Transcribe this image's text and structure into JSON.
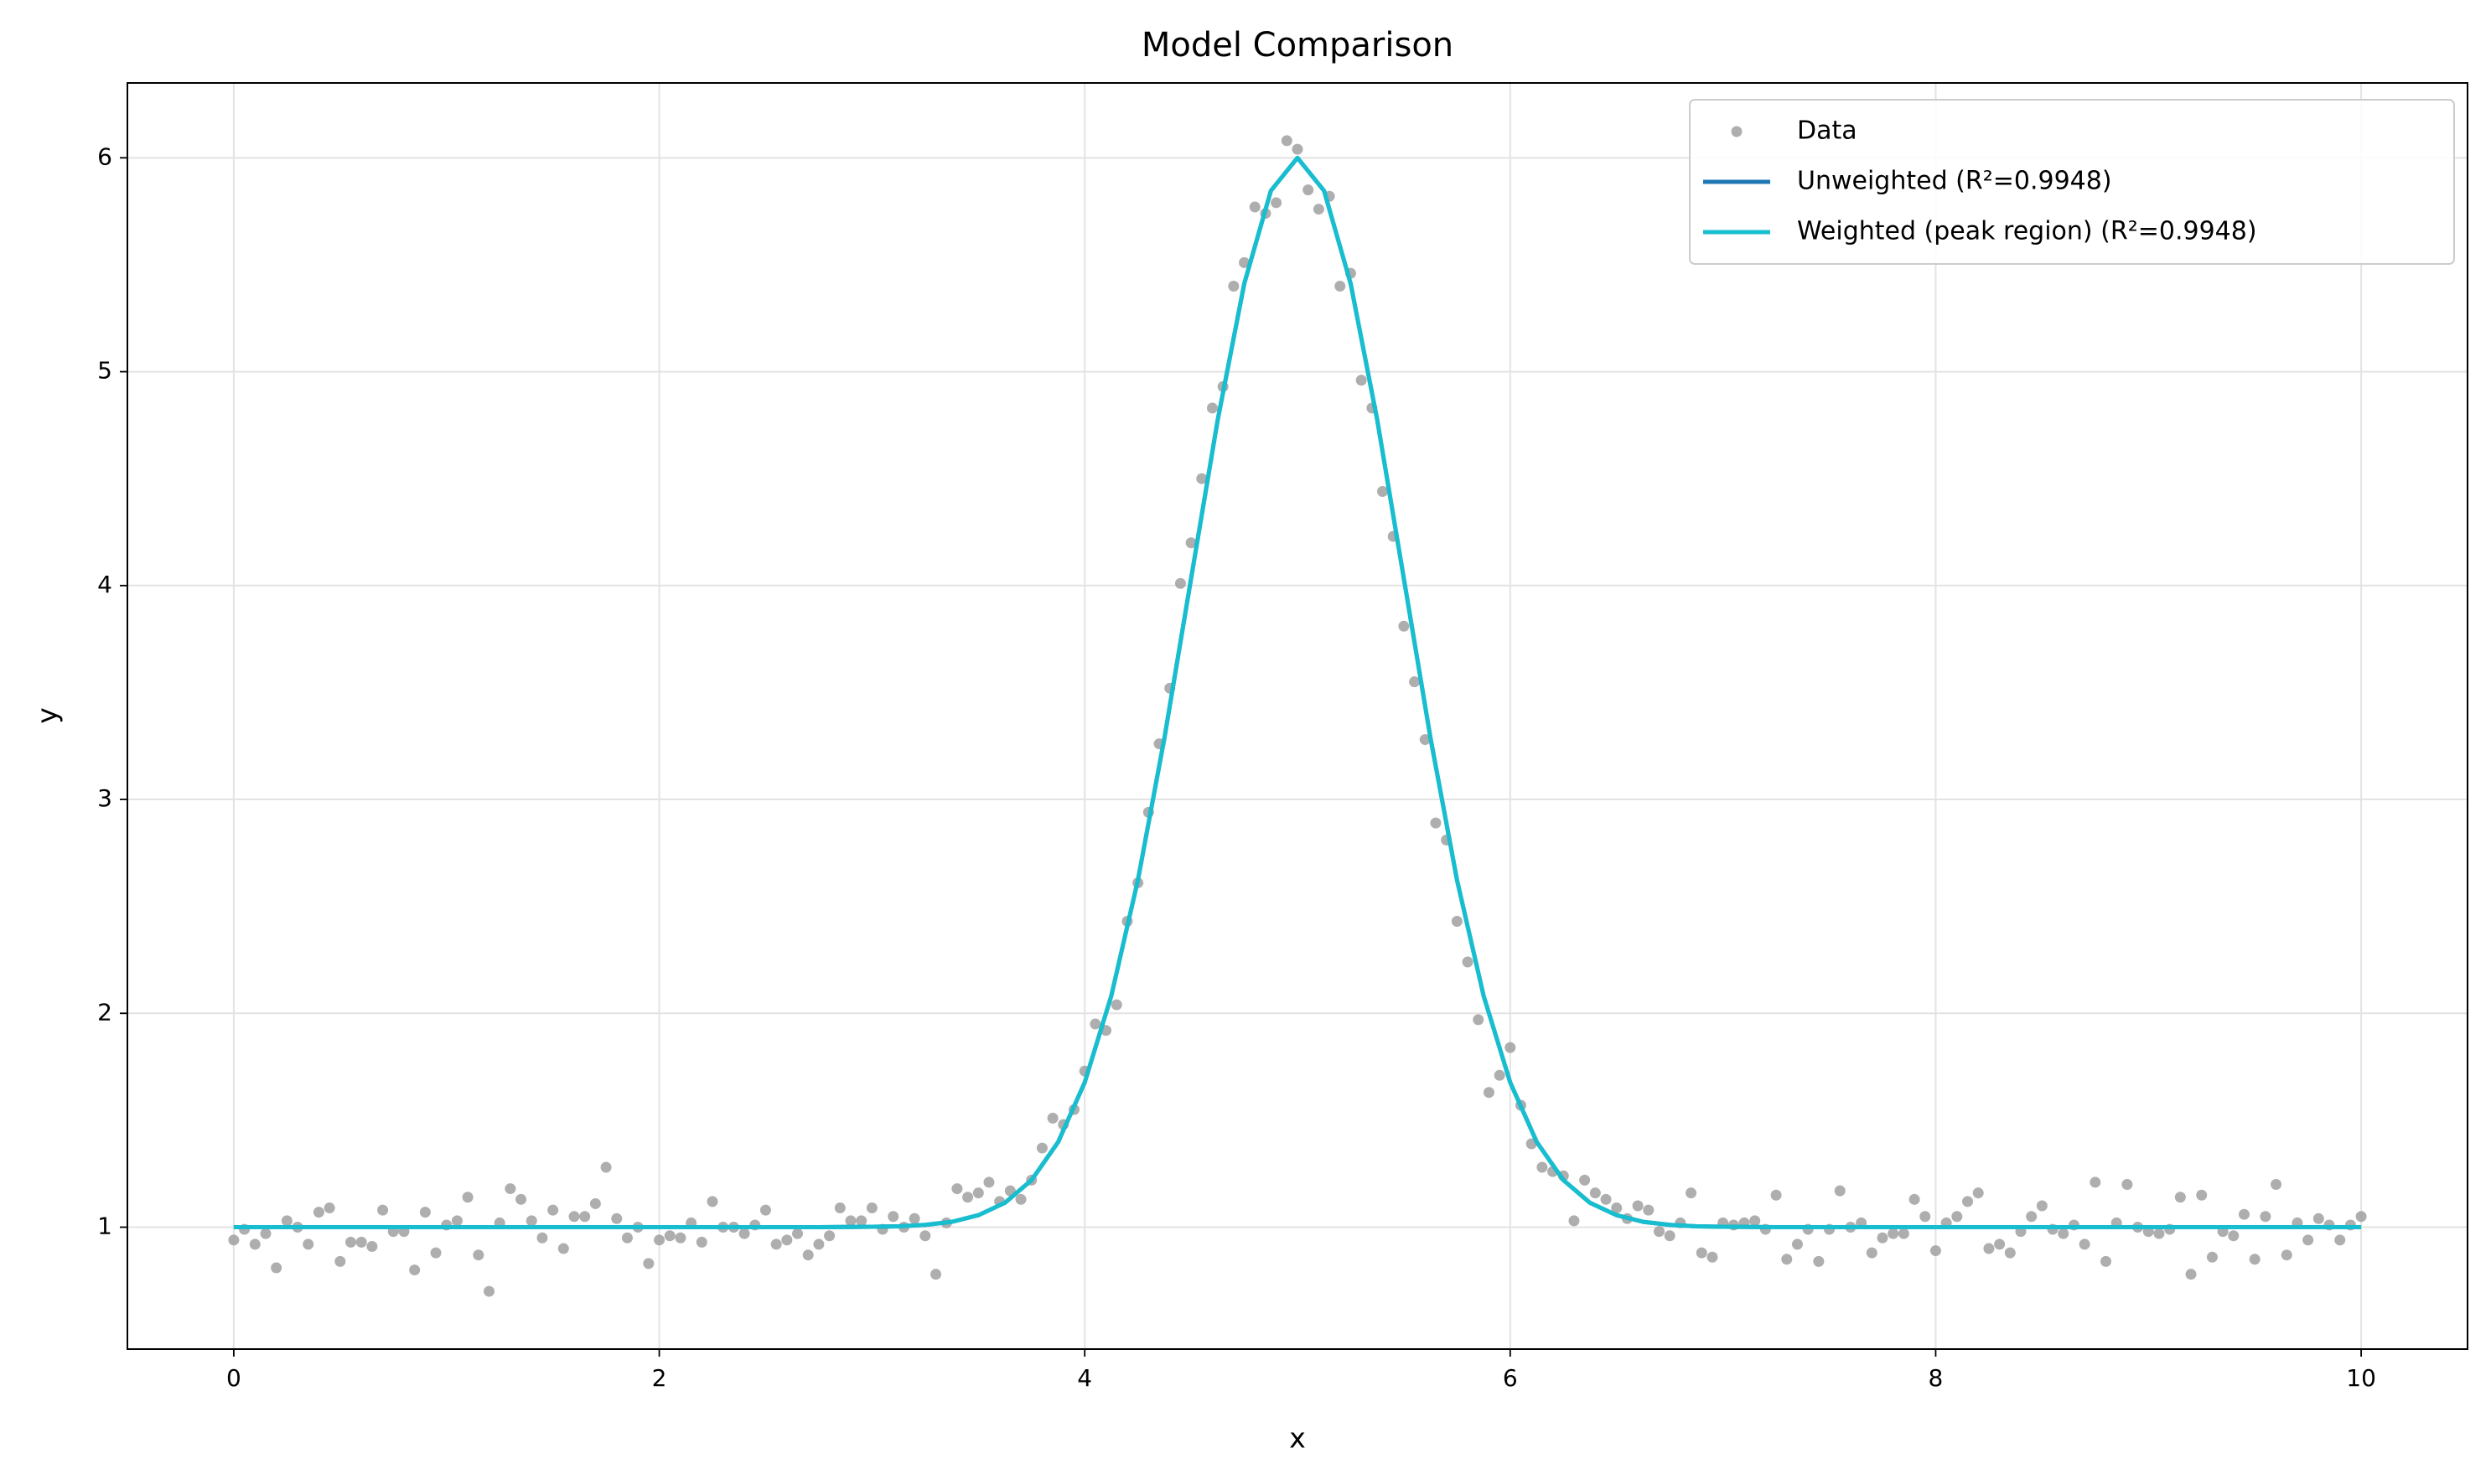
{
  "chart_data": {
    "type": "scatter-line",
    "title": "Model Comparison",
    "x_label": "x",
    "y_label": "y",
    "xlim": [
      -0.5,
      10.5
    ],
    "ylim": [
      0.43,
      6.35
    ],
    "xticks": [
      0,
      2,
      4,
      6,
      8,
      10
    ],
    "yticks": [
      1,
      2,
      3,
      4,
      5,
      6
    ],
    "grid": true,
    "legend": "upper right",
    "series": [
      {
        "name": "Data",
        "kind": "scatter",
        "color": "#9a9a9a",
        "x": [
          0,
          0.05,
          0.1,
          0.15,
          0.2,
          0.25,
          0.3,
          0.35,
          0.4,
          0.45,
          0.5,
          0.55,
          0.6,
          0.65,
          0.7,
          0.75,
          0.8,
          0.85,
          0.9,
          0.95,
          1,
          1.05,
          1.1,
          1.15,
          1.2,
          1.25,
          1.3,
          1.35,
          1.4,
          1.45,
          1.5,
          1.55,
          1.6,
          1.65,
          1.7,
          1.75,
          1.8,
          1.85,
          1.9,
          1.95,
          2,
          2.05,
          2.1,
          2.15,
          2.2,
          2.25,
          2.3,
          2.35,
          2.4,
          2.45,
          2.5,
          2.55,
          2.6,
          2.65,
          2.7,
          2.75,
          2.8,
          2.85,
          2.9,
          2.95,
          3,
          3.05,
          3.1,
          3.15,
          3.2,
          3.25,
          3.3,
          3.35,
          3.4,
          3.45,
          3.5,
          3.55,
          3.6,
          3.65,
          3.7,
          3.75,
          3.8,
          3.85,
          3.9,
          3.95,
          4,
          4.05,
          4.1,
          4.15,
          4.2,
          4.25,
          4.3,
          4.35,
          4.4,
          4.45,
          4.5,
          4.55,
          4.6,
          4.65,
          4.7,
          4.75,
          4.8,
          4.85,
          4.9,
          4.95,
          5,
          5.05,
          5.1,
          5.15,
          5.2,
          5.25,
          5.3,
          5.35,
          5.4,
          5.45,
          5.5,
          5.55,
          5.6,
          5.65,
          5.7,
          5.75,
          5.8,
          5.85,
          5.9,
          5.95,
          6,
          6.05,
          6.1,
          6.15,
          6.2,
          6.25,
          6.3,
          6.35,
          6.4,
          6.45,
          6.5,
          6.55,
          6.6,
          6.65,
          6.7,
          6.75,
          6.8,
          6.85,
          6.9,
          6.95,
          7,
          7.05,
          7.1,
          7.15,
          7.2,
          7.25,
          7.3,
          7.35,
          7.4,
          7.45,
          7.5,
          7.55,
          7.6,
          7.65,
          7.7,
          7.75,
          7.8,
          7.85,
          7.9,
          7.95,
          8,
          8.05,
          8.1,
          8.15,
          8.2,
          8.25,
          8.3,
          8.35,
          8.4,
          8.45,
          8.5,
          8.55,
          8.6,
          8.65,
          8.7,
          8.75,
          8.8,
          8.85,
          8.9,
          8.95,
          9,
          9.05,
          9.1,
          9.15,
          9.2,
          9.25,
          9.3,
          9.35,
          9.4,
          9.45,
          9.5,
          9.55,
          9.6,
          9.65,
          9.7,
          9.75,
          9.8,
          9.85,
          9.9,
          9.95,
          10
        ],
        "values": [
          0.94,
          0.99,
          0.92,
          0.97,
          0.81,
          1.03,
          1.0,
          0.92,
          1.07,
          1.09,
          0.84,
          0.93,
          0.93,
          0.91,
          1.08,
          0.98,
          0.98,
          0.8,
          1.07,
          0.88,
          1.01,
          1.03,
          1.14,
          0.87,
          0.7,
          1.02,
          1.18,
          1.13,
          1.03,
          0.95,
          1.08,
          0.9,
          1.05,
          1.05,
          1.11,
          1.28,
          1.04,
          0.95,
          1.0,
          0.83,
          0.94,
          0.96,
          0.95,
          1.02,
          0.93,
          1.12,
          1.0,
          1.0,
          0.97,
          1.01,
          1.08,
          0.92,
          0.94,
          0.97,
          0.87,
          0.92,
          0.96,
          1.09,
          1.03,
          1.03,
          1.09,
          0.99,
          1.05,
          1.0,
          1.04,
          0.96,
          0.78,
          1.02,
          1.18,
          1.14,
          1.16,
          1.21,
          1.12,
          1.17,
          1.13,
          1.22,
          1.37,
          1.51,
          1.48,
          1.55,
          1.73,
          1.95,
          1.92,
          2.04,
          2.43,
          2.61,
          2.94,
          3.26,
          3.52,
          4.01,
          4.2,
          4.5,
          4.83,
          4.93,
          5.4,
          5.51,
          5.77,
          5.74,
          5.79,
          6.08,
          6.04,
          5.85,
          5.76,
          5.82,
          5.4,
          5.46,
          4.96,
          4.83,
          4.44,
          4.23,
          3.81,
          3.55,
          3.28,
          2.89,
          2.81,
          2.43,
          2.24,
          1.97,
          1.63,
          1.71,
          1.84,
          1.57,
          1.39,
          1.28,
          1.26,
          1.24,
          1.03,
          1.22,
          1.16,
          1.13,
          1.09,
          1.04,
          1.1,
          1.08,
          0.98,
          0.96,
          1.02,
          1.16,
          0.88,
          0.86,
          1.02,
          1.01,
          1.02,
          1.03,
          0.99,
          1.15,
          0.85,
          0.92,
          0.99,
          0.84,
          0.99,
          1.17,
          1.0,
          1.02,
          0.88,
          0.95,
          0.97,
          0.97,
          1.13,
          1.05,
          0.89,
          1.02,
          1.05,
          1.12,
          1.16,
          0.9,
          0.92,
          0.88,
          0.98,
          1.05,
          1.1,
          0.99,
          0.97,
          1.01,
          0.92,
          1.21,
          0.84,
          1.02,
          1.2,
          1.0,
          0.98,
          0.97,
          0.99,
          1.14,
          0.78,
          1.15,
          0.86,
          0.98,
          0.96,
          1.06,
          0.85,
          1.05,
          1.2,
          0.87,
          1.02,
          0.94,
          1.04,
          1.01,
          0.94,
          1.01,
          1.05
        ]
      },
      {
        "name": "Unweighted (R²=0.9948)",
        "kind": "line",
        "color": "#1f77b4",
        "x": [
          0,
          0.125,
          0.25,
          0.375,
          0.5,
          0.625,
          0.75,
          0.875,
          1,
          1.125,
          1.25,
          1.375,
          1.5,
          1.625,
          1.75,
          1.875,
          2,
          2.125,
          2.25,
          2.375,
          2.5,
          2.625,
          2.75,
          2.875,
          3,
          3.125,
          3.25,
          3.375,
          3.5,
          3.625,
          3.75,
          3.875,
          4,
          4.125,
          4.25,
          4.375,
          4.5,
          4.625,
          4.75,
          4.875,
          5,
          5.125,
          5.25,
          5.375,
          5.5,
          5.625,
          5.75,
          5.875,
          6,
          6.125,
          6.25,
          6.375,
          6.5,
          6.625,
          6.75,
          6.875,
          7,
          7.125,
          7.25,
          7.375,
          7.5,
          7.625,
          7.75,
          7.875,
          8,
          8.125,
          8.25,
          8.375,
          8.5,
          8.625,
          8.75,
          8.875,
          9,
          9.125,
          9.25,
          9.375,
          9.5,
          9.625,
          9.75,
          9.875,
          10
        ],
        "values": [
          1,
          1,
          1,
          1,
          1,
          1,
          1,
          1,
          1,
          1,
          1,
          1,
          1,
          1,
          1,
          1,
          1,
          1,
          1,
          1,
          1,
          1,
          1,
          1.001,
          1.002,
          1.004,
          1.011,
          1.025,
          1.056,
          1.114,
          1.22,
          1.398,
          1.677,
          2.082,
          2.623,
          3.289,
          4.033,
          4.774,
          5.412,
          5.846,
          6,
          5.846,
          5.412,
          4.774,
          4.033,
          3.289,
          2.623,
          2.082,
          1.677,
          1.398,
          1.22,
          1.114,
          1.056,
          1.025,
          1.011,
          1.004,
          1.002,
          1.001,
          1,
          1,
          1,
          1,
          1,
          1,
          1,
          1,
          1,
          1,
          1,
          1,
          1,
          1,
          1,
          1,
          1,
          1,
          1,
          1,
          1,
          1,
          1
        ]
      },
      {
        "name": "Weighted (peak region) (R²=0.9948)",
        "kind": "line",
        "color": "#17becf",
        "x": [
          0,
          0.125,
          0.25,
          0.375,
          0.5,
          0.625,
          0.75,
          0.875,
          1,
          1.125,
          1.25,
          1.375,
          1.5,
          1.625,
          1.75,
          1.875,
          2,
          2.125,
          2.25,
          2.375,
          2.5,
          2.625,
          2.75,
          2.875,
          3,
          3.125,
          3.25,
          3.375,
          3.5,
          3.625,
          3.75,
          3.875,
          4,
          4.125,
          4.25,
          4.375,
          4.5,
          4.625,
          4.75,
          4.875,
          5,
          5.125,
          5.25,
          5.375,
          5.5,
          5.625,
          5.75,
          5.875,
          6,
          6.125,
          6.25,
          6.375,
          6.5,
          6.625,
          6.75,
          6.875,
          7,
          7.125,
          7.25,
          7.375,
          7.5,
          7.625,
          7.75,
          7.875,
          8,
          8.125,
          8.25,
          8.375,
          8.5,
          8.625,
          8.75,
          8.875,
          9,
          9.125,
          9.25,
          9.375,
          9.5,
          9.625,
          9.75,
          9.875,
          10
        ],
        "values": [
          1,
          1,
          1,
          1,
          1,
          1,
          1,
          1,
          1,
          1,
          1,
          1,
          1,
          1,
          1,
          1,
          1,
          1,
          1,
          1,
          1,
          1,
          1,
          1.001,
          1.002,
          1.004,
          1.011,
          1.025,
          1.056,
          1.114,
          1.22,
          1.398,
          1.677,
          2.082,
          2.623,
          3.289,
          4.033,
          4.774,
          5.412,
          5.846,
          6,
          5.846,
          5.412,
          4.774,
          4.033,
          3.289,
          2.623,
          2.082,
          1.677,
          1.398,
          1.22,
          1.114,
          1.056,
          1.025,
          1.011,
          1.004,
          1.002,
          1.001,
          1,
          1,
          1,
          1,
          1,
          1,
          1,
          1,
          1,
          1,
          1,
          1,
          1,
          1,
          1,
          1,
          1,
          1,
          1,
          1,
          1,
          1,
          1
        ]
      }
    ]
  }
}
